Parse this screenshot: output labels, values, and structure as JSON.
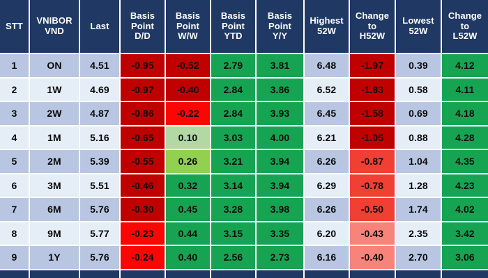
{
  "palette": {
    "header_bg": "#1f3864",
    "header_text": "#ffffff",
    "band_a": "#b9c6e2",
    "band_b": "#e5edf7",
    "green": "#16a452",
    "green_light": "#92d050",
    "green_pale": "#b2d8a4",
    "red_dark": "#c00000",
    "red_bright": "#fb0505",
    "red_medium": "#f04034",
    "red_soft": "#f8837b",
    "grid_line": "#ffffff",
    "cell_text": "#0a0a0a"
  },
  "chart_data": {
    "type": "table",
    "columns": [
      "STT",
      "VNIBOR VND",
      "Last",
      "Basis Point D/D",
      "Basis Point W/W",
      "Basis Point YTD",
      "Basis Point Y/Y",
      "Highest 52W",
      "Change to H52W",
      "Lowest 52W",
      "Change to L52W"
    ],
    "rows": [
      [
        "1",
        "ON",
        "4.51",
        "-0.95",
        "-0.52",
        "2.79",
        "3.81",
        "6.48",
        "-1.97",
        "0.39",
        "4.12"
      ],
      [
        "2",
        "1W",
        "4.69",
        "-0.97",
        "-0.40",
        "2.84",
        "3.86",
        "6.52",
        "-1.83",
        "0.58",
        "4.11"
      ],
      [
        "3",
        "2W",
        "4.87",
        "-0.86",
        "-0.22",
        "2.84",
        "3.93",
        "6.45",
        "-1.58",
        "0.69",
        "4.18"
      ],
      [
        "4",
        "1M",
        "5.16",
        "-0.65",
        "0.10",
        "3.03",
        "4.00",
        "6.21",
        "-1.05",
        "0.88",
        "4.28"
      ],
      [
        "5",
        "2M",
        "5.39",
        "-0.55",
        "0.26",
        "3.21",
        "3.94",
        "6.26",
        "-0.87",
        "1.04",
        "4.35"
      ],
      [
        "6",
        "3M",
        "5.51",
        "-0.46",
        "0.32",
        "3.14",
        "3.94",
        "6.29",
        "-0.78",
        "1.28",
        "4.23"
      ],
      [
        "7",
        "6M",
        "5.76",
        "-0.30",
        "0.45",
        "3.28",
        "3.98",
        "6.26",
        "-0.50",
        "1.74",
        "4.02"
      ],
      [
        "8",
        "9M",
        "5.77",
        "-0.23",
        "0.44",
        "3.15",
        "3.35",
        "6.20",
        "-0.43",
        "2.35",
        "3.42"
      ],
      [
        "9",
        "1Y",
        "5.76",
        "-0.24",
        "0.40",
        "2.56",
        "2.73",
        "6.16",
        "-0.40",
        "2.70",
        "3.06"
      ]
    ],
    "legend_position": "none",
    "grid": true,
    "notes": "Conditional-format heatmap table: reds = negative basis-point changes, greens = positive; alternating blue row banding on STT/VNIBOR/Last/Highest/Lowest columns; partial dark-navy next row cut off at bottom edge."
  },
  "table": {
    "header_lines": [
      [
        "STT"
      ],
      [
        "VNIBOR",
        "VND"
      ],
      [
        "Last"
      ],
      [
        "Basis",
        "Point",
        "D/D"
      ],
      [
        "Basis",
        "Point",
        "W/W"
      ],
      [
        "Basis",
        "Point",
        "YTD"
      ],
      [
        "Basis",
        "Point",
        "Y/Y"
      ],
      [
        "Highest",
        "52W"
      ],
      [
        "Change",
        "to",
        "H52W"
      ],
      [
        "Lowest",
        "52W"
      ],
      [
        "Change",
        "to",
        "L52W"
      ]
    ],
    "column_keys": [
      "stt",
      "tenor",
      "last",
      "bp-dd",
      "bp-ww",
      "bp-ytd",
      "bp-yy",
      "highest-52w",
      "change-h52w",
      "lowest-52w",
      "change-l52w"
    ],
    "cell_colors": [
      [
        "band_a",
        "band_a",
        "band_a",
        "red_dark",
        "red_dark",
        "green",
        "green",
        "band_a",
        "red_dark",
        "band_a",
        "green"
      ],
      [
        "band_b",
        "band_b",
        "band_b",
        "red_dark",
        "red_dark",
        "green",
        "green",
        "band_b",
        "red_dark",
        "band_b",
        "green"
      ],
      [
        "band_a",
        "band_a",
        "band_a",
        "red_dark",
        "red_bright",
        "green",
        "green",
        "band_a",
        "red_dark",
        "band_a",
        "green"
      ],
      [
        "band_b",
        "band_b",
        "band_b",
        "red_dark",
        "green_pale",
        "green",
        "green",
        "band_b",
        "red_dark",
        "band_b",
        "green"
      ],
      [
        "band_a",
        "band_a",
        "band_a",
        "red_dark",
        "green_light",
        "green",
        "green",
        "band_a",
        "red_medium",
        "band_a",
        "green"
      ],
      [
        "band_b",
        "band_b",
        "band_b",
        "red_dark",
        "green",
        "green",
        "green",
        "band_b",
        "red_medium",
        "band_b",
        "green"
      ],
      [
        "band_a",
        "band_a",
        "band_a",
        "red_dark",
        "green",
        "green",
        "green",
        "band_a",
        "red_medium",
        "band_a",
        "green"
      ],
      [
        "band_b",
        "band_b",
        "band_b",
        "red_bright",
        "green",
        "green",
        "green",
        "band_b",
        "red_soft",
        "band_b",
        "green"
      ],
      [
        "band_a",
        "band_a",
        "band_a",
        "red_bright",
        "green",
        "green",
        "green",
        "band_a",
        "red_soft",
        "band_a",
        "green"
      ]
    ]
  }
}
